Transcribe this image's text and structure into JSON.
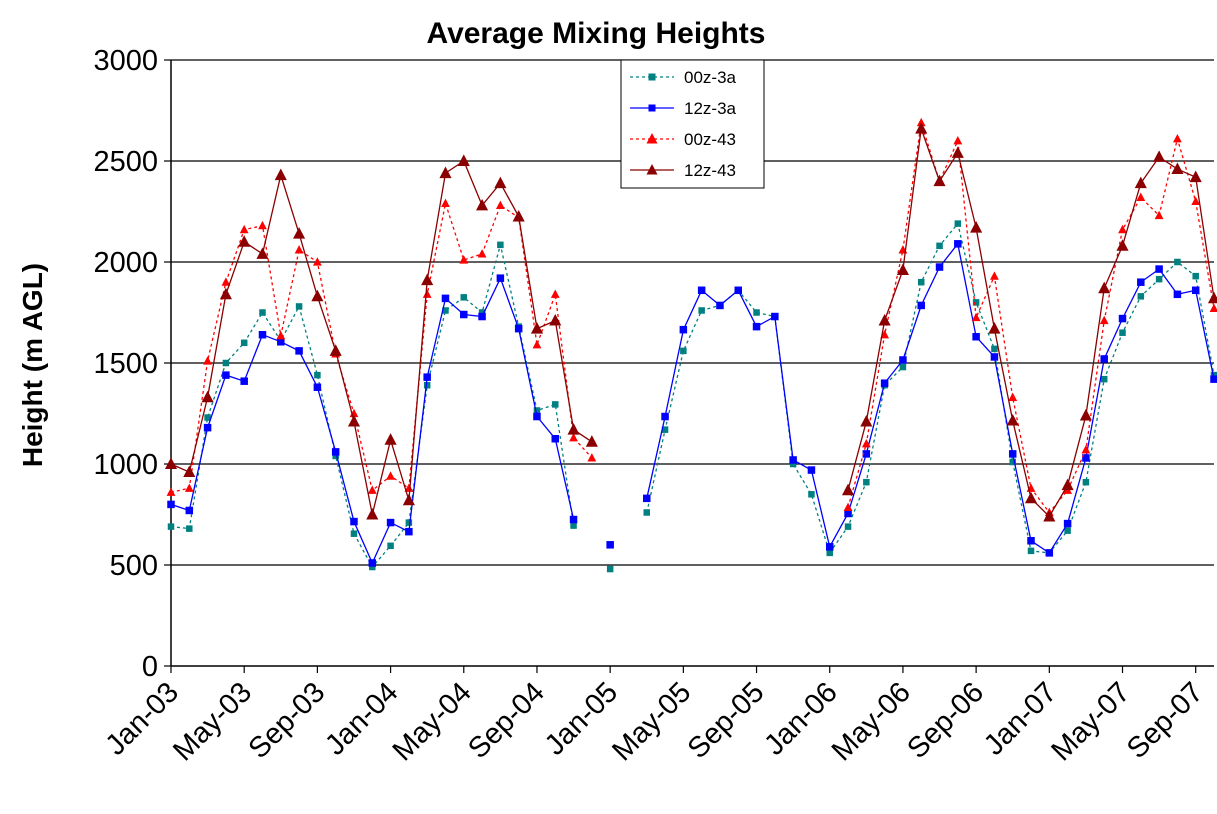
{
  "chart_data": {
    "type": "line",
    "title": "Average Mixing Heights",
    "ylabel": "Height (m AGL)",
    "xlabel": "",
    "ylim": [
      0,
      3000
    ],
    "yticks": [
      0,
      500,
      1000,
      1500,
      2000,
      2500,
      3000
    ],
    "grid": "horizontal",
    "legend_position": "top-center",
    "x_tick_labels": [
      "Jan-03",
      "May-03",
      "Sep-03",
      "Jan-04",
      "May-04",
      "Sep-04",
      "Jan-05",
      "May-05",
      "Sep-05",
      "Jan-06",
      "May-06",
      "Sep-06",
      "Jan-07",
      "May-07",
      "Sep-07"
    ],
    "x_range_months": [
      0,
      57
    ],
    "series": [
      {
        "name": "00z-3a",
        "color": "#008080",
        "dash": "dashed",
        "marker": "square",
        "values": [
          690,
          680,
          1230,
          1500,
          1600,
          1750,
          1610,
          1780,
          1440,
          1040,
          655,
          490,
          595,
          710,
          1390,
          1760,
          1825,
          1750,
          2085,
          1680,
          1265,
          1295,
          695,
          null,
          480,
          null,
          760,
          1170,
          1560,
          1760,
          1785,
          1860,
          1750,
          1730,
          1000,
          850,
          560,
          690,
          910,
          1390,
          1480,
          1900,
          2080,
          2190,
          1800,
          1570,
          1010,
          570,
          560,
          670,
          910,
          1420,
          1650,
          1830,
          1915,
          2000,
          1930,
          1440
        ]
      },
      {
        "name": "12z-3a",
        "color": "#0000ff",
        "dash": "solid",
        "marker": "square",
        "values": [
          800,
          770,
          1180,
          1440,
          1410,
          1640,
          1605,
          1560,
          1380,
          1060,
          715,
          510,
          710,
          665,
          1430,
          1820,
          1740,
          1730,
          1920,
          1670,
          1235,
          1125,
          725,
          null,
          600,
          null,
          830,
          1235,
          1665,
          1860,
          1785,
          1860,
          1680,
          1730,
          1020,
          970,
          590,
          755,
          1050,
          1400,
          1515,
          1785,
          1975,
          2090,
          1630,
          1530,
          1050,
          620,
          560,
          705,
          1030,
          1520,
          1720,
          1900,
          1965,
          1840,
          1860,
          1420
        ]
      },
      {
        "name": "00z-43",
        "color": "#ff0000",
        "dash": "dashed",
        "marker": "triangle",
        "values": [
          860,
          880,
          1510,
          1900,
          2160,
          2180,
          1635,
          2060,
          2000,
          1545,
          1250,
          870,
          940,
          880,
          1840,
          2290,
          2010,
          2040,
          2280,
          2220,
          1590,
          1840,
          1130,
          1030,
          null,
          null,
          null,
          null,
          null,
          null,
          null,
          null,
          null,
          null,
          null,
          null,
          null,
          785,
          1100,
          1640,
          2060,
          2690,
          2400,
          2600,
          1725,
          1930,
          1330,
          880,
          760,
          870,
          1070,
          1710,
          2160,
          2320,
          2230,
          2610,
          2300,
          1770
        ]
      },
      {
        "name": "12z-43",
        "color": "#8b0000",
        "dash": "solid",
        "marker": "triangle",
        "values": [
          1000,
          960,
          1330,
          1840,
          2100,
          2040,
          2430,
          2140,
          1830,
          1560,
          1210,
          750,
          1120,
          820,
          1910,
          2440,
          2500,
          2280,
          2390,
          2225,
          1670,
          1710,
          1170,
          1110,
          null,
          null,
          null,
          null,
          null,
          null,
          null,
          null,
          null,
          null,
          null,
          null,
          null,
          870,
          1210,
          1710,
          1960,
          2660,
          2400,
          2540,
          2170,
          1670,
          1215,
          830,
          740,
          895,
          1240,
          1870,
          2080,
          2390,
          2520,
          2460,
          2420,
          1820
        ]
      }
    ]
  }
}
